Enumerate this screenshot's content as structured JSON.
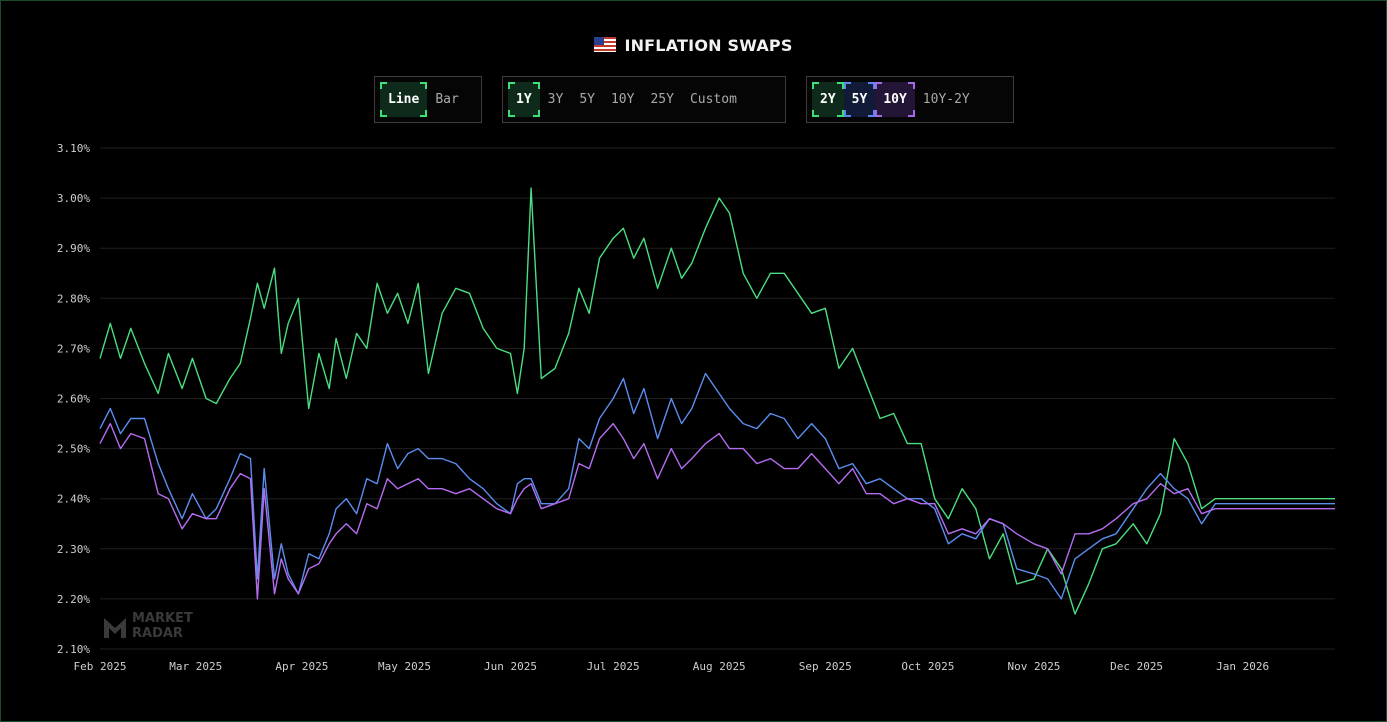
{
  "header": {
    "title": "INFLATION SWAPS",
    "flag_icon": "us-flag-icon"
  },
  "chart_type_toggle": [
    {
      "label": "Line",
      "active": true
    },
    {
      "label": "Bar",
      "active": false
    }
  ],
  "range_toggle": [
    {
      "label": "1Y",
      "active": true
    },
    {
      "label": "3Y",
      "active": false
    },
    {
      "label": "5Y",
      "active": false
    },
    {
      "label": "10Y",
      "active": false
    },
    {
      "label": "25Y",
      "active": false
    },
    {
      "label": "Custom",
      "active": false
    }
  ],
  "series_toggle": [
    {
      "label": "2Y",
      "active": true,
      "color": "#4ade80"
    },
    {
      "label": "5Y",
      "active": true,
      "color": "#5b8def"
    },
    {
      "label": "10Y",
      "active": true,
      "color": "#b56cf0"
    },
    {
      "label": "10Y-2Y",
      "active": false
    }
  ],
  "watermark": {
    "line1": "MARKET",
    "line2": "RADAR"
  },
  "colors": {
    "background": "#000000",
    "grid": "#1f1f1f",
    "axis_text": "#cfcfcf",
    "accent": "#3ee07a"
  },
  "chart_data": {
    "type": "line",
    "title": "INFLATION SWAPS",
    "xlabel": "",
    "ylabel": "",
    "ylim": [
      2.1,
      3.1
    ],
    "yticks": [
      "3.10%",
      "3.00%",
      "2.90%",
      "2.80%",
      "2.70%",
      "2.60%",
      "2.50%",
      "2.40%",
      "2.30%",
      "2.20%",
      "2.10%"
    ],
    "ytick_values": [
      3.1,
      3.0,
      2.9,
      2.8,
      2.7,
      2.6,
      2.5,
      2.4,
      2.3,
      2.2,
      2.1
    ],
    "xticks": [
      "Feb 2025",
      "Mar 2025",
      "Apr 2025",
      "May 2025",
      "Jun 2025",
      "Jul 2025",
      "Aug 2025",
      "Sep 2025",
      "Oct 2025",
      "Nov 2025",
      "Dec 2025",
      "Jan 2026"
    ],
    "xtick_values": [
      "2025-02-01",
      "2025-03-01",
      "2025-04-01",
      "2025-05-01",
      "2025-06-01",
      "2025-07-01",
      "2025-08-01",
      "2025-09-01",
      "2025-10-01",
      "2025-11-01",
      "2025-12-01",
      "2026-01-01"
    ],
    "x_range": [
      "2025-02-01",
      "2026-01-28"
    ],
    "grid": true,
    "series": [
      {
        "name": "2Y",
        "color": "#4ade80",
        "x": [
          "2025-02-01",
          "2025-02-04",
          "2025-02-07",
          "2025-02-10",
          "2025-02-14",
          "2025-02-18",
          "2025-02-21",
          "2025-02-25",
          "2025-02-28",
          "2025-03-04",
          "2025-03-07",
          "2025-03-11",
          "2025-03-14",
          "2025-03-17",
          "2025-03-19",
          "2025-03-21",
          "2025-03-24",
          "2025-03-26",
          "2025-03-28",
          "2025-03-31",
          "2025-04-03",
          "2025-04-06",
          "2025-04-09",
          "2025-04-11",
          "2025-04-14",
          "2025-04-17",
          "2025-04-20",
          "2025-04-23",
          "2025-04-26",
          "2025-04-29",
          "2025-05-02",
          "2025-05-05",
          "2025-05-08",
          "2025-05-12",
          "2025-05-16",
          "2025-05-20",
          "2025-05-24",
          "2025-05-28",
          "2025-06-01",
          "2025-06-03",
          "2025-06-05",
          "2025-06-07",
          "2025-06-10",
          "2025-06-14",
          "2025-06-18",
          "2025-06-21",
          "2025-06-24",
          "2025-06-27",
          "2025-07-01",
          "2025-07-04",
          "2025-07-07",
          "2025-07-10",
          "2025-07-14",
          "2025-07-18",
          "2025-07-21",
          "2025-07-24",
          "2025-07-28",
          "2025-08-01",
          "2025-08-04",
          "2025-08-08",
          "2025-08-12",
          "2025-08-16",
          "2025-08-20",
          "2025-08-24",
          "2025-08-28",
          "2025-09-01",
          "2025-09-05",
          "2025-09-09",
          "2025-09-13",
          "2025-09-17",
          "2025-09-21",
          "2025-09-25",
          "2025-09-29",
          "2025-10-03",
          "2025-10-07",
          "2025-10-11",
          "2025-10-15",
          "2025-10-19",
          "2025-10-23",
          "2025-10-27",
          "2025-11-01",
          "2025-11-05",
          "2025-11-09",
          "2025-11-13",
          "2025-11-17",
          "2025-11-21",
          "2025-11-25",
          "2025-11-30",
          "2025-12-04",
          "2025-12-08",
          "2025-12-12",
          "2025-12-16",
          "2025-12-20",
          "2025-12-24",
          "2025-12-28",
          "2026-01-01",
          "2026-01-05",
          "2026-01-09",
          "2026-01-13",
          "2026-01-17",
          "2026-01-21",
          "2026-01-25",
          "2026-01-28"
        ],
        "values": [
          2.68,
          2.75,
          2.68,
          2.74,
          2.67,
          2.61,
          2.69,
          2.62,
          2.68,
          2.6,
          2.59,
          2.64,
          2.67,
          2.76,
          2.83,
          2.78,
          2.86,
          2.69,
          2.75,
          2.8,
          2.58,
          2.69,
          2.62,
          2.72,
          2.64,
          2.73,
          2.7,
          2.83,
          2.77,
          2.81,
          2.75,
          2.83,
          2.65,
          2.77,
          2.82,
          2.81,
          2.74,
          2.7,
          2.69,
          2.61,
          2.7,
          3.02,
          2.64,
          2.66,
          2.73,
          2.82,
          2.77,
          2.88,
          2.92,
          2.94,
          2.88,
          2.92,
          2.82,
          2.9,
          2.84,
          2.87,
          2.94,
          3.0,
          2.97,
          2.85,
          2.8,
          2.85,
          2.85,
          2.81,
          2.77,
          2.78,
          2.66,
          2.7,
          2.63,
          2.56,
          2.57,
          2.51,
          2.51,
          2.4,
          2.36,
          2.42,
          2.38,
          2.28,
          2.33,
          2.23,
          2.24,
          2.3,
          2.26,
          2.17,
          2.23,
          2.3,
          2.31,
          2.35,
          2.31,
          2.37,
          2.52,
          2.47,
          2.38,
          2.4,
          2.4,
          2.4,
          2.4,
          2.4,
          2.4,
          2.4,
          2.4,
          2.4,
          2.4
        ]
      },
      {
        "name": "5Y",
        "color": "#5b8def",
        "x": [
          "2025-02-01",
          "2025-02-04",
          "2025-02-07",
          "2025-02-10",
          "2025-02-14",
          "2025-02-18",
          "2025-02-21",
          "2025-02-25",
          "2025-02-28",
          "2025-03-04",
          "2025-03-07",
          "2025-03-11",
          "2025-03-14",
          "2025-03-17",
          "2025-03-19",
          "2025-03-21",
          "2025-03-24",
          "2025-03-26",
          "2025-03-28",
          "2025-03-31",
          "2025-04-03",
          "2025-04-06",
          "2025-04-09",
          "2025-04-11",
          "2025-04-14",
          "2025-04-17",
          "2025-04-20",
          "2025-04-23",
          "2025-04-26",
          "2025-04-29",
          "2025-05-02",
          "2025-05-05",
          "2025-05-08",
          "2025-05-12",
          "2025-05-16",
          "2025-05-20",
          "2025-05-24",
          "2025-05-28",
          "2025-06-01",
          "2025-06-03",
          "2025-06-05",
          "2025-06-07",
          "2025-06-10",
          "2025-06-14",
          "2025-06-18",
          "2025-06-21",
          "2025-06-24",
          "2025-06-27",
          "2025-07-01",
          "2025-07-04",
          "2025-07-07",
          "2025-07-10",
          "2025-07-14",
          "2025-07-18",
          "2025-07-21",
          "2025-07-24",
          "2025-07-28",
          "2025-08-01",
          "2025-08-04",
          "2025-08-08",
          "2025-08-12",
          "2025-08-16",
          "2025-08-20",
          "2025-08-24",
          "2025-08-28",
          "2025-09-01",
          "2025-09-05",
          "2025-09-09",
          "2025-09-13",
          "2025-09-17",
          "2025-09-21",
          "2025-09-25",
          "2025-09-29",
          "2025-10-03",
          "2025-10-07",
          "2025-10-11",
          "2025-10-15",
          "2025-10-19",
          "2025-10-23",
          "2025-10-27",
          "2025-11-01",
          "2025-11-05",
          "2025-11-09",
          "2025-11-13",
          "2025-11-17",
          "2025-11-21",
          "2025-11-25",
          "2025-11-30",
          "2025-12-04",
          "2025-12-08",
          "2025-12-12",
          "2025-12-16",
          "2025-12-20",
          "2025-12-24",
          "2025-12-28",
          "2026-01-01",
          "2026-01-05",
          "2026-01-09",
          "2026-01-13",
          "2026-01-17",
          "2026-01-21",
          "2026-01-25",
          "2026-01-28"
        ],
        "values": [
          2.54,
          2.58,
          2.53,
          2.56,
          2.56,
          2.47,
          2.42,
          2.36,
          2.41,
          2.36,
          2.38,
          2.44,
          2.49,
          2.48,
          2.24,
          2.46,
          2.24,
          2.31,
          2.25,
          2.21,
          2.29,
          2.28,
          2.33,
          2.38,
          2.4,
          2.37,
          2.44,
          2.43,
          2.51,
          2.46,
          2.49,
          2.5,
          2.48,
          2.48,
          2.47,
          2.44,
          2.42,
          2.39,
          2.37,
          2.43,
          2.44,
          2.44,
          2.39,
          2.39,
          2.42,
          2.52,
          2.5,
          2.56,
          2.6,
          2.64,
          2.57,
          2.62,
          2.52,
          2.6,
          2.55,
          2.58,
          2.65,
          2.61,
          2.58,
          2.55,
          2.54,
          2.57,
          2.56,
          2.52,
          2.55,
          2.52,
          2.46,
          2.47,
          2.43,
          2.44,
          2.42,
          2.4,
          2.4,
          2.38,
          2.31,
          2.33,
          2.32,
          2.36,
          2.35,
          2.26,
          2.25,
          2.24,
          2.2,
          2.28,
          2.3,
          2.32,
          2.33,
          2.38,
          2.42,
          2.45,
          2.42,
          2.4,
          2.35,
          2.39,
          2.39,
          2.39,
          2.39,
          2.39,
          2.39,
          2.39,
          2.39,
          2.39,
          2.39
        ]
      },
      {
        "name": "10Y",
        "color": "#b56cf0",
        "x": [
          "2025-02-01",
          "2025-02-04",
          "2025-02-07",
          "2025-02-10",
          "2025-02-14",
          "2025-02-18",
          "2025-02-21",
          "2025-02-25",
          "2025-02-28",
          "2025-03-04",
          "2025-03-07",
          "2025-03-11",
          "2025-03-14",
          "2025-03-17",
          "2025-03-19",
          "2025-03-21",
          "2025-03-24",
          "2025-03-26",
          "2025-03-28",
          "2025-03-31",
          "2025-04-03",
          "2025-04-06",
          "2025-04-09",
          "2025-04-11",
          "2025-04-14",
          "2025-04-17",
          "2025-04-20",
          "2025-04-23",
          "2025-04-26",
          "2025-04-29",
          "2025-05-02",
          "2025-05-05",
          "2025-05-08",
          "2025-05-12",
          "2025-05-16",
          "2025-05-20",
          "2025-05-24",
          "2025-05-28",
          "2025-06-01",
          "2025-06-03",
          "2025-06-05",
          "2025-06-07",
          "2025-06-10",
          "2025-06-14",
          "2025-06-18",
          "2025-06-21",
          "2025-06-24",
          "2025-06-27",
          "2025-07-01",
          "2025-07-04",
          "2025-07-07",
          "2025-07-10",
          "2025-07-14",
          "2025-07-18",
          "2025-07-21",
          "2025-07-24",
          "2025-07-28",
          "2025-08-01",
          "2025-08-04",
          "2025-08-08",
          "2025-08-12",
          "2025-08-16",
          "2025-08-20",
          "2025-08-24",
          "2025-08-28",
          "2025-09-01",
          "2025-09-05",
          "2025-09-09",
          "2025-09-13",
          "2025-09-17",
          "2025-09-21",
          "2025-09-25",
          "2025-09-29",
          "2025-10-03",
          "2025-10-07",
          "2025-10-11",
          "2025-10-15",
          "2025-10-19",
          "2025-10-23",
          "2025-10-27",
          "2025-11-01",
          "2025-11-05",
          "2025-11-09",
          "2025-11-13",
          "2025-11-17",
          "2025-11-21",
          "2025-11-25",
          "2025-11-30",
          "2025-12-04",
          "2025-12-08",
          "2025-12-12",
          "2025-12-16",
          "2025-12-20",
          "2025-12-24",
          "2025-12-28",
          "2026-01-01",
          "2026-01-05",
          "2026-01-09",
          "2026-01-13",
          "2026-01-17",
          "2026-01-21",
          "2026-01-25",
          "2026-01-28"
        ],
        "values": [
          2.51,
          2.55,
          2.5,
          2.53,
          2.52,
          2.41,
          2.4,
          2.34,
          2.37,
          2.36,
          2.36,
          2.42,
          2.45,
          2.44,
          2.2,
          2.42,
          2.21,
          2.28,
          2.24,
          2.21,
          2.26,
          2.27,
          2.31,
          2.33,
          2.35,
          2.33,
          2.39,
          2.38,
          2.44,
          2.42,
          2.43,
          2.44,
          2.42,
          2.42,
          2.41,
          2.42,
          2.4,
          2.38,
          2.37,
          2.4,
          2.42,
          2.43,
          2.38,
          2.39,
          2.4,
          2.47,
          2.46,
          2.52,
          2.55,
          2.52,
          2.48,
          2.51,
          2.44,
          2.5,
          2.46,
          2.48,
          2.51,
          2.53,
          2.5,
          2.5,
          2.47,
          2.48,
          2.46,
          2.46,
          2.49,
          2.46,
          2.43,
          2.46,
          2.41,
          2.41,
          2.39,
          2.4,
          2.39,
          2.39,
          2.33,
          2.34,
          2.33,
          2.36,
          2.35,
          2.33,
          2.31,
          2.3,
          2.25,
          2.33,
          2.33,
          2.34,
          2.36,
          2.39,
          2.4,
          2.43,
          2.41,
          2.42,
          2.37,
          2.38,
          2.38,
          2.38,
          2.38,
          2.38,
          2.38,
          2.38,
          2.38,
          2.38,
          2.38
        ]
      }
    ]
  }
}
